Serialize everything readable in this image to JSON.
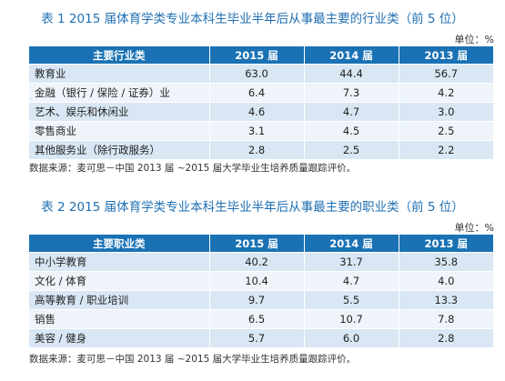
{
  "table1": {
    "caption": "表 1  2015 届体育学类专业本科生毕业半年后从事最主要的行业类（前 5 位）",
    "unit": "单位：%",
    "headers": [
      "主要行业类",
      "2015 届",
      "2014 届",
      "2013 届"
    ],
    "rows": [
      {
        "name": "教育业",
        "v2015": "63.0",
        "v2014": "44.4",
        "v2013": "56.7"
      },
      {
        "name": "金融（银行 / 保险 / 证券）业",
        "v2015": "6.4",
        "v2014": "7.3",
        "v2013": "4.2"
      },
      {
        "name": "艺术、娱乐和休闲业",
        "v2015": "4.6",
        "v2014": "4.7",
        "v2013": "3.0"
      },
      {
        "name": "零售商业",
        "v2015": "3.1",
        "v2014": "4.5",
        "v2013": "2.5"
      },
      {
        "name": "其他服务业（除行政服务）",
        "v2015": "2.8",
        "v2014": "2.5",
        "v2013": "2.2"
      }
    ],
    "source": "数据来源：麦可思－中国 2013 届 ~2015 届大学毕业生培养质量跟踪评价。"
  },
  "table2": {
    "caption": "表 2  2015 届体育学类专业本科生毕业半年后从事最主要的职业类（前 5 位）",
    "unit": "单位：%",
    "headers": [
      "主要职业类",
      "2015 届",
      "2014 届",
      "2013 届"
    ],
    "rows": [
      {
        "name": "中小学教育",
        "v2015": "40.2",
        "v2014": "31.7",
        "v2013": "35.8"
      },
      {
        "name": "文化 / 体育",
        "v2015": "10.4",
        "v2014": "4.7",
        "v2013": "4.0"
      },
      {
        "name": "高等教育 / 职业培训",
        "v2015": "9.7",
        "v2014": "5.5",
        "v2013": "13.3"
      },
      {
        "name": "销售",
        "v2015": "6.5",
        "v2014": "10.7",
        "v2013": "7.8"
      },
      {
        "name": "美容 / 健身",
        "v2015": "5.7",
        "v2014": "6.0",
        "v2013": "2.8"
      }
    ],
    "source": "数据来源：麦可思－中国 2013 届 ~2015 届大学毕业生培养质量跟踪评价。"
  }
}
